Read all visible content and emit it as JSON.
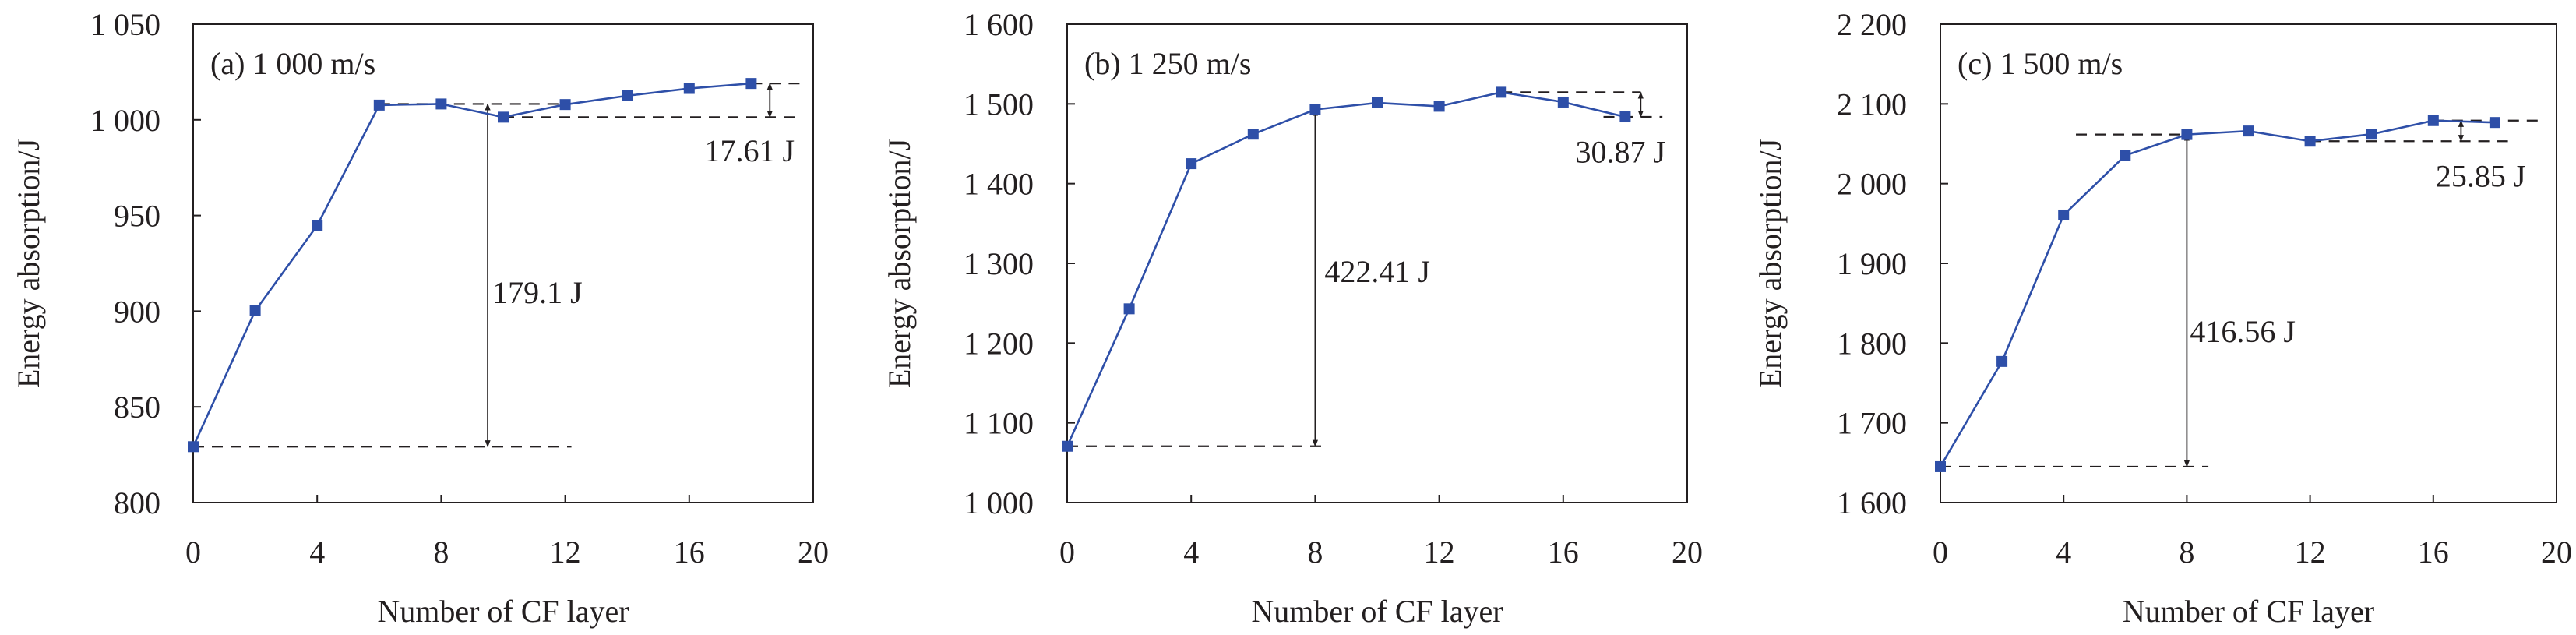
{
  "chart_data": [
    {
      "type": "line",
      "title": "(a) 1 000 m/s",
      "xlabel": "Number of CF layer",
      "ylabel": "Energy absorption/J",
      "xlim": [
        0,
        20
      ],
      "ylim": [
        800,
        1050
      ],
      "xticks": [
        0,
        4,
        8,
        12,
        16,
        20
      ],
      "yticks": [
        800,
        850,
        900,
        950,
        1000,
        1050
      ],
      "ytick_labels": [
        "800",
        "850",
        "900",
        "950",
        "1 000",
        "1 050"
      ],
      "x": [
        0,
        2,
        4,
        6,
        8,
        10,
        12,
        14,
        16,
        18
      ],
      "y": [
        829.2,
        900.2,
        944.8,
        1007.7,
        1008.3,
        1001.4,
        1008.0,
        1012.6,
        1016.4,
        1019.0
      ],
      "color": "#2e4fa8",
      "annotations": [
        {
          "label": "179.1 J",
          "arrow_x": 9.5,
          "from": 829.2,
          "to": 1008.3,
          "dash_low": [
            0,
            12.2
          ],
          "dash_high": [
            6,
            12
          ],
          "label_x": 9.65,
          "label_y": 910,
          "anchor": "start"
        },
        {
          "label": "17.61 J",
          "arrow_x": 18.6,
          "from": 1001.4,
          "to": 1019.0,
          "dash_low": [
            10,
            19.6
          ],
          "dash_high": [
            18,
            19.6
          ],
          "label_x": 19.4,
          "label_y": 984,
          "anchor": "end"
        }
      ]
    },
    {
      "type": "line",
      "title": "(b) 1 250 m/s",
      "xlabel": "Number of CF layer",
      "ylabel": "Energy absorption/J",
      "xlim": [
        0,
        20
      ],
      "ylim": [
        1000,
        1600
      ],
      "xticks": [
        0,
        4,
        8,
        12,
        16,
        20
      ],
      "yticks": [
        1000,
        1100,
        1200,
        1300,
        1400,
        1500,
        1600
      ],
      "ytick_labels": [
        "1 000",
        "1 100",
        "1 200",
        "1 300",
        "1 400",
        "1 500",
        "1 600"
      ],
      "x": [
        0,
        2,
        4,
        6,
        8,
        10,
        12,
        14,
        16,
        18
      ],
      "y": [
        1070.6,
        1243,
        1425,
        1462,
        1493.0,
        1501.3,
        1497,
        1514.6,
        1502.3,
        1483.7
      ],
      "color": "#2e4fa8",
      "annotations": [
        {
          "label": "422.41 J",
          "arrow_x": 8,
          "from": 1070.6,
          "to": 1493.0,
          "dash_low": [
            0,
            8.3
          ],
          "dash_high": null,
          "label_x": 8.3,
          "label_y": 1290,
          "anchor": "start"
        },
        {
          "label": "30.87 J",
          "arrow_x": 18.5,
          "from": 1483.7,
          "to": 1514.6,
          "dash_low": [
            17.3,
            19.2
          ],
          "dash_high": [
            14,
            18.5
          ],
          "label_x": 19.3,
          "label_y": 1440,
          "anchor": "end"
        }
      ]
    },
    {
      "type": "line",
      "title": "(c) 1 500 m/s",
      "xlabel": "Number of CF layer",
      "ylabel": "Energy absorption/J",
      "xlim": [
        0,
        20
      ],
      "ylim": [
        1600,
        2200
      ],
      "xticks": [
        0,
        4,
        8,
        12,
        16,
        20
      ],
      "yticks": [
        1600,
        1700,
        1800,
        1900,
        2000,
        2100,
        2200
      ],
      "ytick_labels": [
        "1 600",
        "1 700",
        "1 800",
        "1 900",
        "2 000",
        "2 100",
        "2 200"
      ],
      "x": [
        0,
        2,
        4,
        6,
        8,
        10,
        12,
        14,
        16,
        18
      ],
      "y": [
        1645,
        1777,
        1960.6,
        2035.3,
        2061.6,
        2066,
        2053.2,
        2062,
        2079.05,
        2076.7
      ],
      "color": "#2e4fa8",
      "annotations": [
        {
          "label": "416.56 J",
          "arrow_x": 8,
          "from": 1645,
          "to": 2061.6,
          "dash_low": [
            0,
            8.7
          ],
          "dash_high": [
            4.4,
            8
          ],
          "label_x": 8.1,
          "label_y": 1815,
          "anchor": "start"
        },
        {
          "label": "25.85 J",
          "arrow_x": 16.9,
          "from": 2053.2,
          "to": 2079.05,
          "dash_low": [
            12,
            18.6
          ],
          "dash_high": [
            16,
            19.6
          ],
          "label_x": 19.0,
          "label_y": 2010,
          "anchor": "end"
        }
      ]
    }
  ]
}
